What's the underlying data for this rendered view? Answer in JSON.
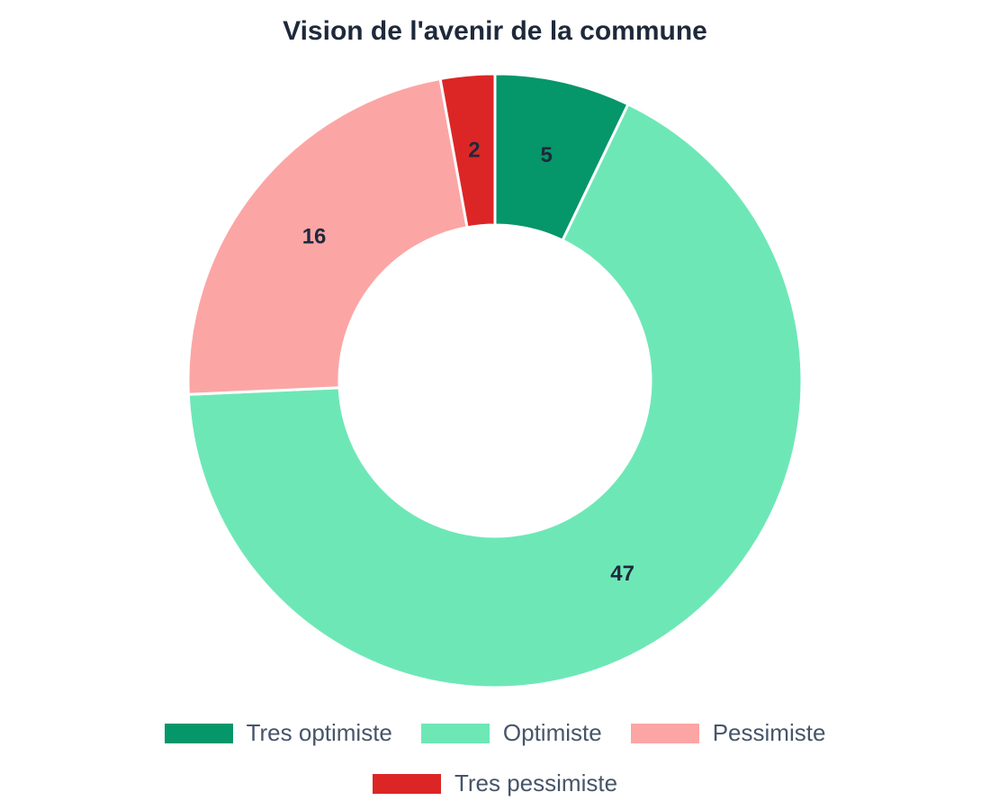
{
  "chart_data": {
    "type": "pie",
    "variant": "doughnut",
    "title": "Vision de l'avenir de la commune",
    "categories": [
      "Tres optimiste",
      "Optimiste",
      "Pessimiste",
      "Tres pessimiste"
    ],
    "values": [
      5,
      47,
      16,
      2
    ],
    "colors": [
      "#059669",
      "#6ee7b7",
      "#fca5a5",
      "#dc2626"
    ],
    "data_labels": [
      "5",
      "47",
      "16",
      "2"
    ],
    "legend_position": "bottom",
    "grid": false
  },
  "title": "Vision de l'avenir de la commune",
  "legend": {
    "items": [
      {
        "label": "Tres optimiste",
        "color": "#059669"
      },
      {
        "label": "Optimiste",
        "color": "#6ee7b7"
      },
      {
        "label": "Pessimiste",
        "color": "#fca5a5"
      },
      {
        "label": "Tres pessimiste",
        "color": "#dc2626"
      }
    ]
  }
}
